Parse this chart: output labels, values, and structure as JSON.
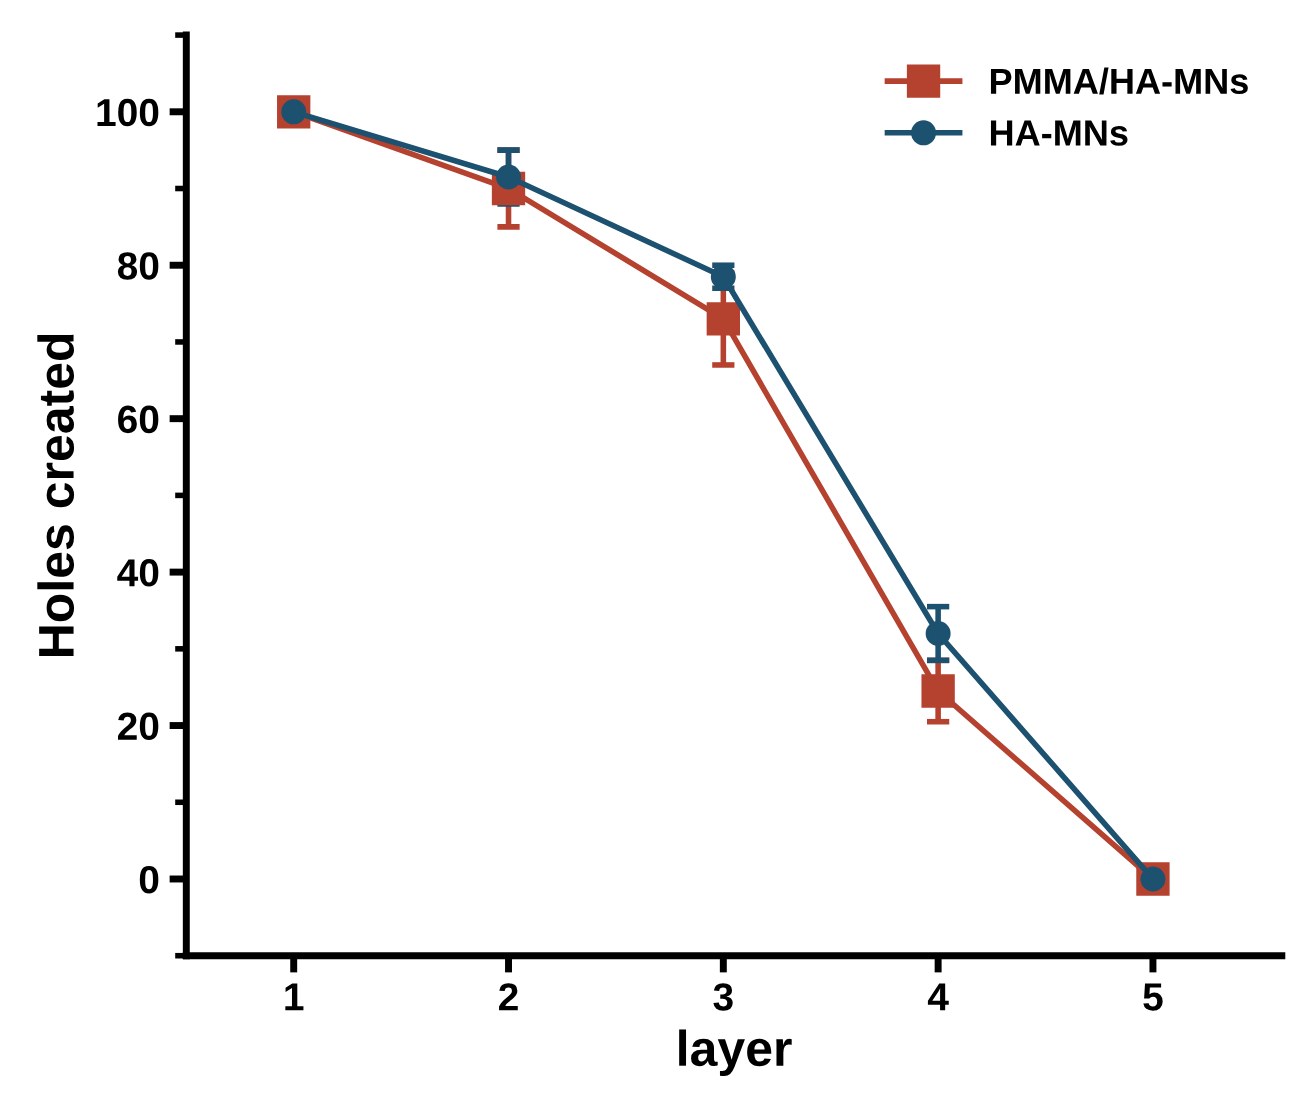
{
  "chart_data": {
    "type": "line",
    "xlabel": "layer",
    "ylabel": "Holes created",
    "x": [
      1,
      2,
      3,
      4,
      5
    ],
    "series": [
      {
        "name": "PMMA/HA-MNs",
        "color": "#b5412f",
        "marker": "square",
        "values": [
          100,
          90,
          73,
          24.5,
          0
        ],
        "errors": [
          0,
          5,
          6,
          4,
          0
        ]
      },
      {
        "name": "HA-MNs",
        "color": "#1c5170",
        "marker": "circle",
        "values": [
          100,
          91.5,
          78.5,
          32,
          0
        ],
        "errors": [
          0,
          3.5,
          1.5,
          3.5,
          0
        ]
      }
    ],
    "xlim": [
      0.5,
      5.6
    ],
    "xticks": [
      1,
      2,
      3,
      4,
      5
    ],
    "ylim": [
      -10,
      110
    ],
    "yticks": [
      0,
      20,
      40,
      60,
      80,
      100
    ],
    "grid": false,
    "legend": "top right",
    "line_style": "solid"
  }
}
